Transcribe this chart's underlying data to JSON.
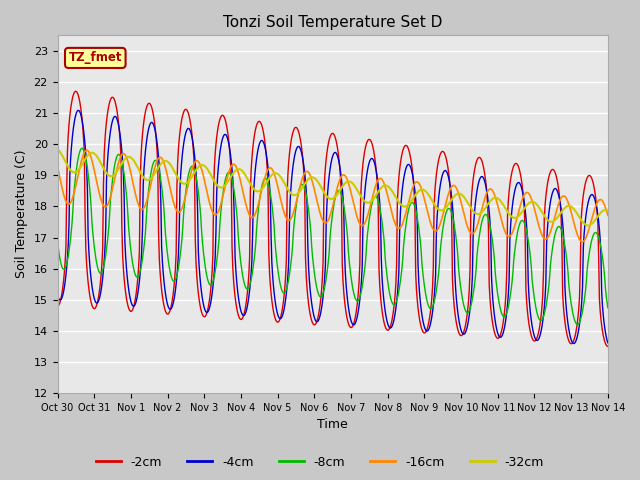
{
  "title": "Tonzi Soil Temperature Set D",
  "xlabel": "Time",
  "ylabel": "Soil Temperature (C)",
  "annotation": "TZ_fmet",
  "ylim": [
    12.0,
    23.5
  ],
  "yticks": [
    12.0,
    13.0,
    14.0,
    15.0,
    16.0,
    17.0,
    18.0,
    19.0,
    20.0,
    21.0,
    22.0,
    23.0
  ],
  "xtick_labels": [
    "Oct 30",
    "Oct 31",
    "Nov 1",
    "Nov 2",
    "Nov 3",
    "Nov 4",
    "Nov 5",
    "Nov 6",
    "Nov 7",
    "Nov 8",
    "Nov 9",
    "Nov 10",
    "Nov 11",
    "Nov 12",
    "Nov 13",
    "Nov 14"
  ],
  "colors": {
    "-2cm": "#dd0000",
    "-4cm": "#0000cc",
    "-8cm": "#00bb00",
    "-16cm": "#ff8800",
    "-32cm": "#cccc00"
  },
  "fig_bg": "#c8c8c8",
  "ax_bg": "#e8e8e8",
  "grid_color": "#ffffff",
  "annotation_fg": "#aa0000",
  "annotation_bg": "#ffff99",
  "annotation_border": "#aa0000"
}
